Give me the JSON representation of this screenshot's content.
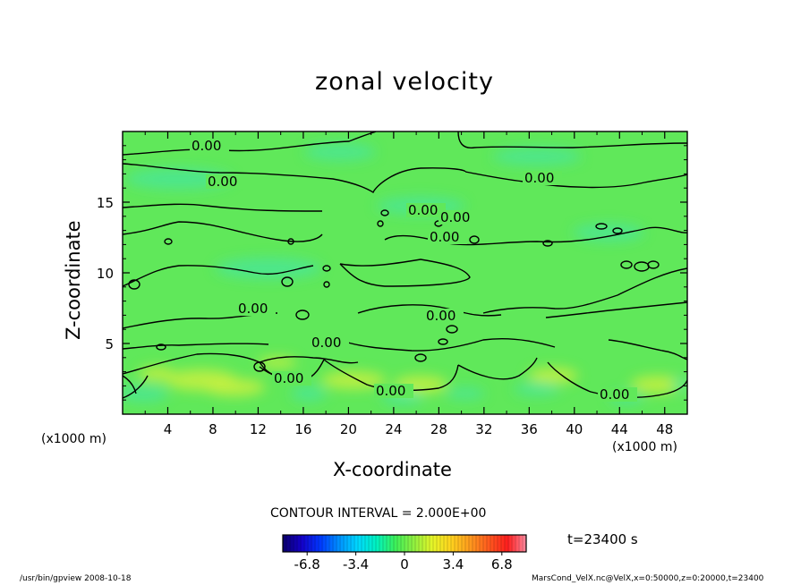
{
  "chart_data": {
    "type": "heatmap",
    "title": "zonal velocity",
    "xlabel": "X-coordinate",
    "ylabel": "Z-coordinate",
    "x_unit_label": "(x1000 m)",
    "xlim": [
      0,
      50
    ],
    "ylim": [
      0,
      20
    ],
    "x_ticks": [
      4,
      8,
      12,
      16,
      20,
      24,
      28,
      32,
      36,
      40,
      44,
      48
    ],
    "y_ticks": [
      5,
      10,
      15
    ],
    "contour_labels": [
      "0.00",
      "0.00",
      "0.00",
      "0.00",
      "0.00",
      "0.00",
      "0.00",
      "0.00",
      "0.00",
      "0.00",
      "0.00",
      "0.00"
    ],
    "contour_interval_text": "CONTOUR INTERVAL = 2.000E+00",
    "colorbar": {
      "min": -8.5,
      "max": 8.5,
      "ticks": [
        "-6.8",
        "-3.4",
        "0",
        "3.4",
        "6.8"
      ],
      "colors": [
        "#0a006b",
        "#1400c8",
        "#0038ff",
        "#0090ff",
        "#00d8ff",
        "#00f2c0",
        "#3cf05a",
        "#90f040",
        "#e6f528",
        "#ffd21e",
        "#ff9a1e",
        "#ff5a1e",
        "#ff1e1e",
        "#ff8aa0"
      ]
    },
    "field_colors": {
      "base": "#60e85a",
      "positive": "#c8f040",
      "negative": "#40e6b4"
    },
    "time_label": "t=23400 s"
  },
  "footer": {
    "left": "/usr/bin/gpview   2008-10-18",
    "right": "MarsCond_VelX.nc@VelX,x=0:50000,z=0:20000,t=23400"
  }
}
